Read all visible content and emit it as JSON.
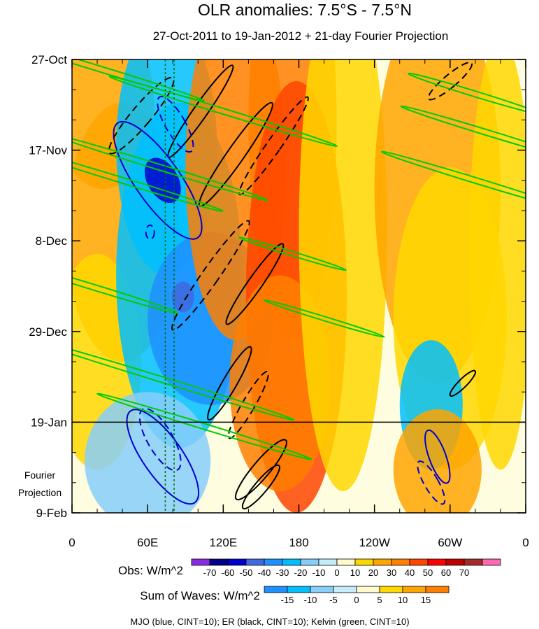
{
  "chart_data": {
    "type": "heatmap",
    "title": "OLR anomalies: 7.5°S - 7.5°N",
    "subtitle": "27-Oct-2011 to 19-Jan-2012 + 21-day Fourier Projection",
    "xlabel": "",
    "ylabel": "",
    "x_tick_labels": [
      "0",
      "60E",
      "120E",
      "180",
      "120W",
      "60W",
      "0"
    ],
    "x_range_deg_east": [
      0,
      360
    ],
    "y_tick_labels": [
      "27-Oct",
      "17-Nov",
      "8-Dec",
      "29-Dec",
      "19-Jan",
      "9-Feb"
    ],
    "y_range_days": [
      0,
      105
    ],
    "observation_end_day": 84,
    "projection_label": [
      "Fourier",
      "Projection"
    ],
    "obs_colorbar": {
      "label": "Obs: W/m^2",
      "levels": [
        "-70",
        "-60",
        "-50",
        "-40",
        "-30",
        "-20",
        "-10",
        "0",
        "10",
        "20",
        "30",
        "40",
        "50",
        "60",
        "70"
      ],
      "colors": [
        "#8a2be2",
        "#00008b",
        "#0000cd",
        "#4169e1",
        "#1e90ff",
        "#00bfff",
        "#87cefa",
        "#c6ecfa",
        "#fffacd",
        "#ffd700",
        "#ffa500",
        "#ff7f00",
        "#ff4500",
        "#ff0000",
        "#c00000",
        "#a52a2a",
        "#ff69b4"
      ]
    },
    "waves_colorbar": {
      "label": "Sum of Waves: W/m^2",
      "levels": [
        "-15",
        "-10",
        "-5",
        "0",
        "5",
        "10",
        "15"
      ],
      "colors": [
        "#1e90ff",
        "#00bfff",
        "#87cefa",
        "#c6ecfa",
        "#fffacd",
        "#ffd700",
        "#ffa500",
        "#ff7f00"
      ]
    },
    "legend_note": "MJO (blue, CINT=10); ER (black, CINT=10); Kelvin (green, CINT=10)",
    "series": [
      {
        "name": "MJO",
        "color": "#0000cd",
        "contour_interval": 10
      },
      {
        "name": "ER",
        "color": "#000000",
        "contour_interval": 10
      },
      {
        "name": "Kelvin",
        "color": "#00cc00",
        "contour_interval": 10
      }
    ],
    "reference_lines_lon_deg": [
      74,
      81
    ]
  }
}
